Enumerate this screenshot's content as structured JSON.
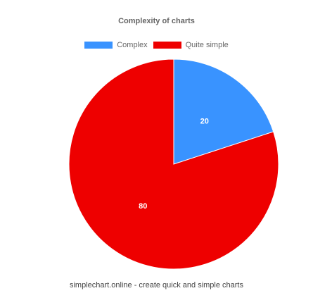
{
  "chart_data": {
    "type": "pie",
    "title": "Complexity of charts",
    "categories": [
      "Complex",
      "Quite simple"
    ],
    "values": [
      20,
      80
    ],
    "colors": [
      "#3993ff",
      "#ee0000"
    ],
    "data_labels": [
      "20",
      "80"
    ],
    "legend_position": "top"
  },
  "footer": {
    "text": "simplechart.online - create quick and simple charts"
  }
}
